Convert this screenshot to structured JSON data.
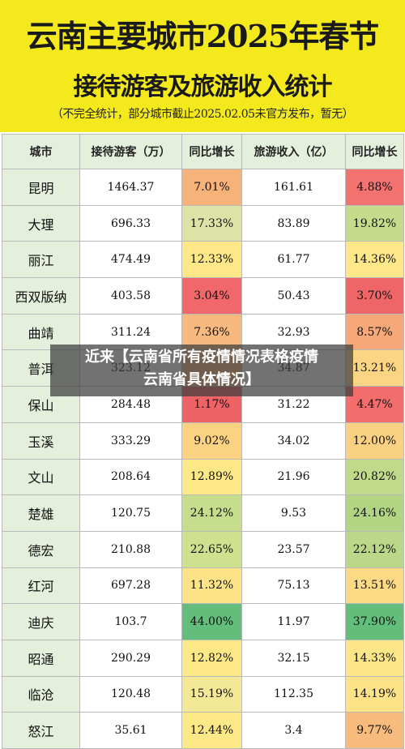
{
  "title": {
    "main": "云南主要城市2025年春节",
    "sub": "接待游客及旅游收入统计",
    "note": "（不完全统计，部分城市截止2025.02.05未官方发布，暂无）"
  },
  "table": {
    "headers": [
      "城市",
      "接待游客（万）",
      "同比增长",
      "旅游收入（亿）",
      "同比增长"
    ],
    "rows": [
      {
        "city": "昆明",
        "visitors": "1464.37",
        "v_growth": "7.01%",
        "v_color": "#f7b27a",
        "revenue": "161.61",
        "r_growth": "4.88%",
        "r_color": "#f1726f"
      },
      {
        "city": "大理",
        "visitors": "696.33",
        "v_growth": "17.33%",
        "v_color": "#dde2a6",
        "revenue": "83.89",
        "r_growth": "19.82%",
        "r_color": "#c6dc8c"
      },
      {
        "city": "丽江",
        "visitors": "474.49",
        "v_growth": "12.33%",
        "v_color": "#fde788",
        "revenue": "61.77",
        "r_growth": "14.36%",
        "r_color": "#fde789"
      },
      {
        "city": "西双版纳",
        "visitors": "403.58",
        "v_growth": "3.04%",
        "v_color": "#f0686b",
        "revenue": "50.43",
        "r_growth": "3.70%",
        "r_color": "#ef6668"
      },
      {
        "city": "曲靖",
        "visitors": "311.24",
        "v_growth": "7.36%",
        "v_color": "#f8b97e",
        "revenue": "32.93",
        "r_growth": "8.57%",
        "r_color": "#f6a879"
      },
      {
        "city": "普洱",
        "visitors": "323.12",
        "v_growth": "",
        "v_color": "#f6b27c",
        "revenue": "34.87",
        "r_growth": "13.21%",
        "r_color": "#fbd583"
      },
      {
        "city": "保山",
        "visitors": "284.48",
        "v_growth": "1.17%",
        "v_color": "#ee6466",
        "revenue": "31.22",
        "r_growth": "4.47%",
        "r_color": "#f16e6d"
      },
      {
        "city": "玉溪",
        "visitors": "333.29",
        "v_growth": "9.02%",
        "v_color": "#fbd282",
        "revenue": "34.02",
        "r_growth": "12.00%",
        "r_color": "#fad182"
      },
      {
        "city": "文山",
        "visitors": "208.64",
        "v_growth": "12.89%",
        "v_color": "#fde888",
        "revenue": "21.96",
        "r_growth": "20.82%",
        "r_color": "#c0d98a"
      },
      {
        "city": "楚雄",
        "visitors": "120.75",
        "v_growth": "24.12%",
        "v_color": "#c6dd8d",
        "revenue": "9.53",
        "r_growth": "24.16%",
        "r_color": "#b2d583"
      },
      {
        "city": "德宏",
        "visitors": "210.88",
        "v_growth": "22.65%",
        "v_color": "#cfe08f",
        "revenue": "23.57",
        "r_growth": "22.12%",
        "r_color": "#bbd88a"
      },
      {
        "city": "红河",
        "visitors": "697.28",
        "v_growth": "11.32%",
        "v_color": "#fce387",
        "revenue": "75.13",
        "r_growth": "13.51%",
        "r_color": "#fbd985"
      },
      {
        "city": "迪庆",
        "visitors": "103.7",
        "v_growth": "44.00%",
        "v_color": "#63be7b",
        "revenue": "11.97",
        "r_growth": "37.90%",
        "r_color": "#63be7b"
      },
      {
        "city": "昭通",
        "visitors": "290.29",
        "v_growth": "12.82%",
        "v_color": "#fde888",
        "revenue": "32.15",
        "r_growth": "14.33%",
        "r_color": "#fde688"
      },
      {
        "city": "临沧",
        "visitors": "120.48",
        "v_growth": "15.19%",
        "v_color": "#f3e896",
        "revenue": "112.35",
        "r_growth": "14.19%",
        "r_color": "#fde387"
      },
      {
        "city": "怒江",
        "visitors": "35.61",
        "v_growth": "12.44%",
        "v_color": "#fde888",
        "revenue": "3.4",
        "r_growth": "9.77%",
        "r_color": "#f8bb7e"
      }
    ]
  },
  "overlay": {
    "line1": "近来【云南省所有疫情情况表格疫情",
    "line2": "云南省具体情况】"
  }
}
